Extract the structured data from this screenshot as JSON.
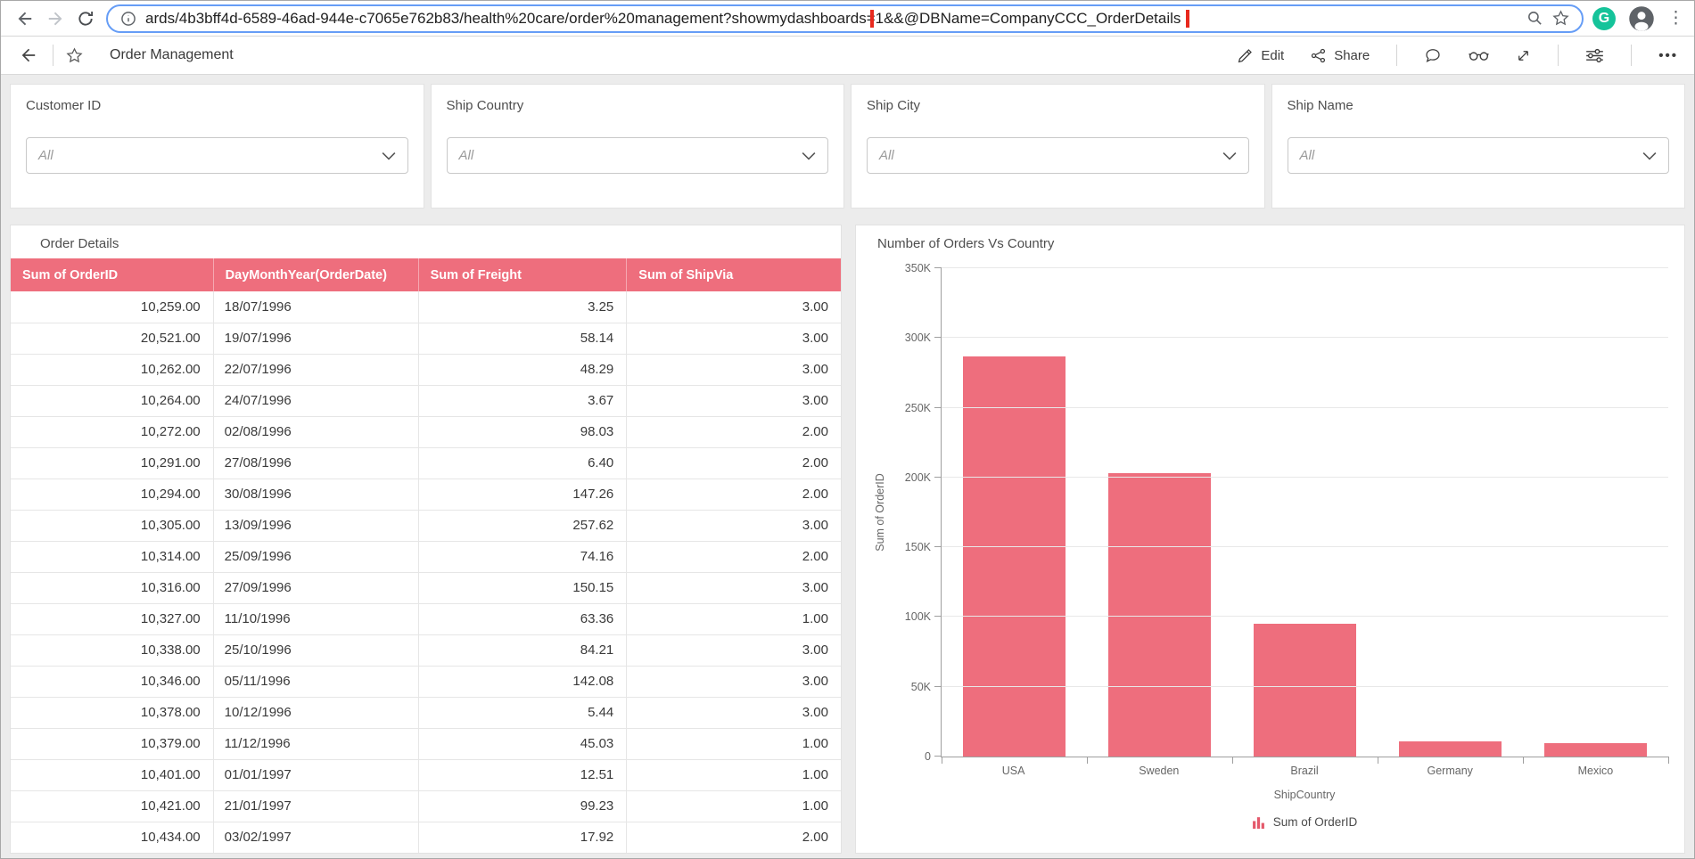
{
  "browser": {
    "url_prefix": "ards/4b3bff4d-6589-46ad-944e-c7065e762b83/health%20care/order%20management?showmydashboards=",
    "url_highlighted": "1&&@DBName=CompanyCCC_OrderDetails",
    "grammarly_letter": "G",
    "more_glyph": "⋮"
  },
  "toolbar": {
    "title": "Order Management",
    "edit_label": "Edit",
    "share_label": "Share",
    "more_glyph": "•••"
  },
  "filters": [
    {
      "label": "Customer ID",
      "value": "All"
    },
    {
      "label": "Ship Country",
      "value": "All"
    },
    {
      "label": "Ship City",
      "value": "All"
    },
    {
      "label": "Ship Name",
      "value": "All"
    }
  ],
  "table": {
    "title": "Order Details",
    "columns": [
      "Sum of OrderID",
      "DayMonthYear(OrderDate)",
      "Sum of Freight",
      "Sum of ShipVia"
    ],
    "rows": [
      [
        "10,259.00",
        "18/07/1996",
        "3.25",
        "3.00"
      ],
      [
        "20,521.00",
        "19/07/1996",
        "58.14",
        "3.00"
      ],
      [
        "10,262.00",
        "22/07/1996",
        "48.29",
        "3.00"
      ],
      [
        "10,264.00",
        "24/07/1996",
        "3.67",
        "3.00"
      ],
      [
        "10,272.00",
        "02/08/1996",
        "98.03",
        "2.00"
      ],
      [
        "10,291.00",
        "27/08/1996",
        "6.40",
        "2.00"
      ],
      [
        "10,294.00",
        "30/08/1996",
        "147.26",
        "2.00"
      ],
      [
        "10,305.00",
        "13/09/1996",
        "257.62",
        "3.00"
      ],
      [
        "10,314.00",
        "25/09/1996",
        "74.16",
        "2.00"
      ],
      [
        "10,316.00",
        "27/09/1996",
        "150.15",
        "3.00"
      ],
      [
        "10,327.00",
        "11/10/1996",
        "63.36",
        "1.00"
      ],
      [
        "10,338.00",
        "25/10/1996",
        "84.21",
        "3.00"
      ],
      [
        "10,346.00",
        "05/11/1996",
        "142.08",
        "3.00"
      ],
      [
        "10,378.00",
        "10/12/1996",
        "5.44",
        "3.00"
      ],
      [
        "10,379.00",
        "11/12/1996",
        "45.03",
        "1.00"
      ],
      [
        "10,401.00",
        "01/01/1997",
        "12.51",
        "1.00"
      ],
      [
        "10,421.00",
        "21/01/1997",
        "99.23",
        "1.00"
      ],
      [
        "10,434.00",
        "03/02/1997",
        "17.92",
        "2.00"
      ]
    ]
  },
  "chart_data": {
    "type": "bar",
    "title": "Number of Orders Vs Country",
    "categories": [
      "USA",
      "Sweden",
      "Brazil",
      "Germany",
      "Mexico"
    ],
    "values": [
      287000,
      203000,
      95000,
      11000,
      9500
    ],
    "xlabel": "ShipCountry",
    "ylabel": "Sum of OrderID",
    "ylim": [
      0,
      350000
    ],
    "ytick_labels": [
      "0",
      "50K",
      "100K",
      "150K",
      "200K",
      "250K",
      "300K",
      "350K"
    ],
    "grid": true,
    "legend_position": "bottom",
    "legend_label": "Sum of OrderID",
    "bar_color": "#ee6e7d"
  },
  "colors": {
    "accent": "#ee6e7d",
    "annotation_red": "#e8291d",
    "focus_blue": "#669df6",
    "grammarly_green": "#15c39a",
    "page_background": "#ececec"
  }
}
